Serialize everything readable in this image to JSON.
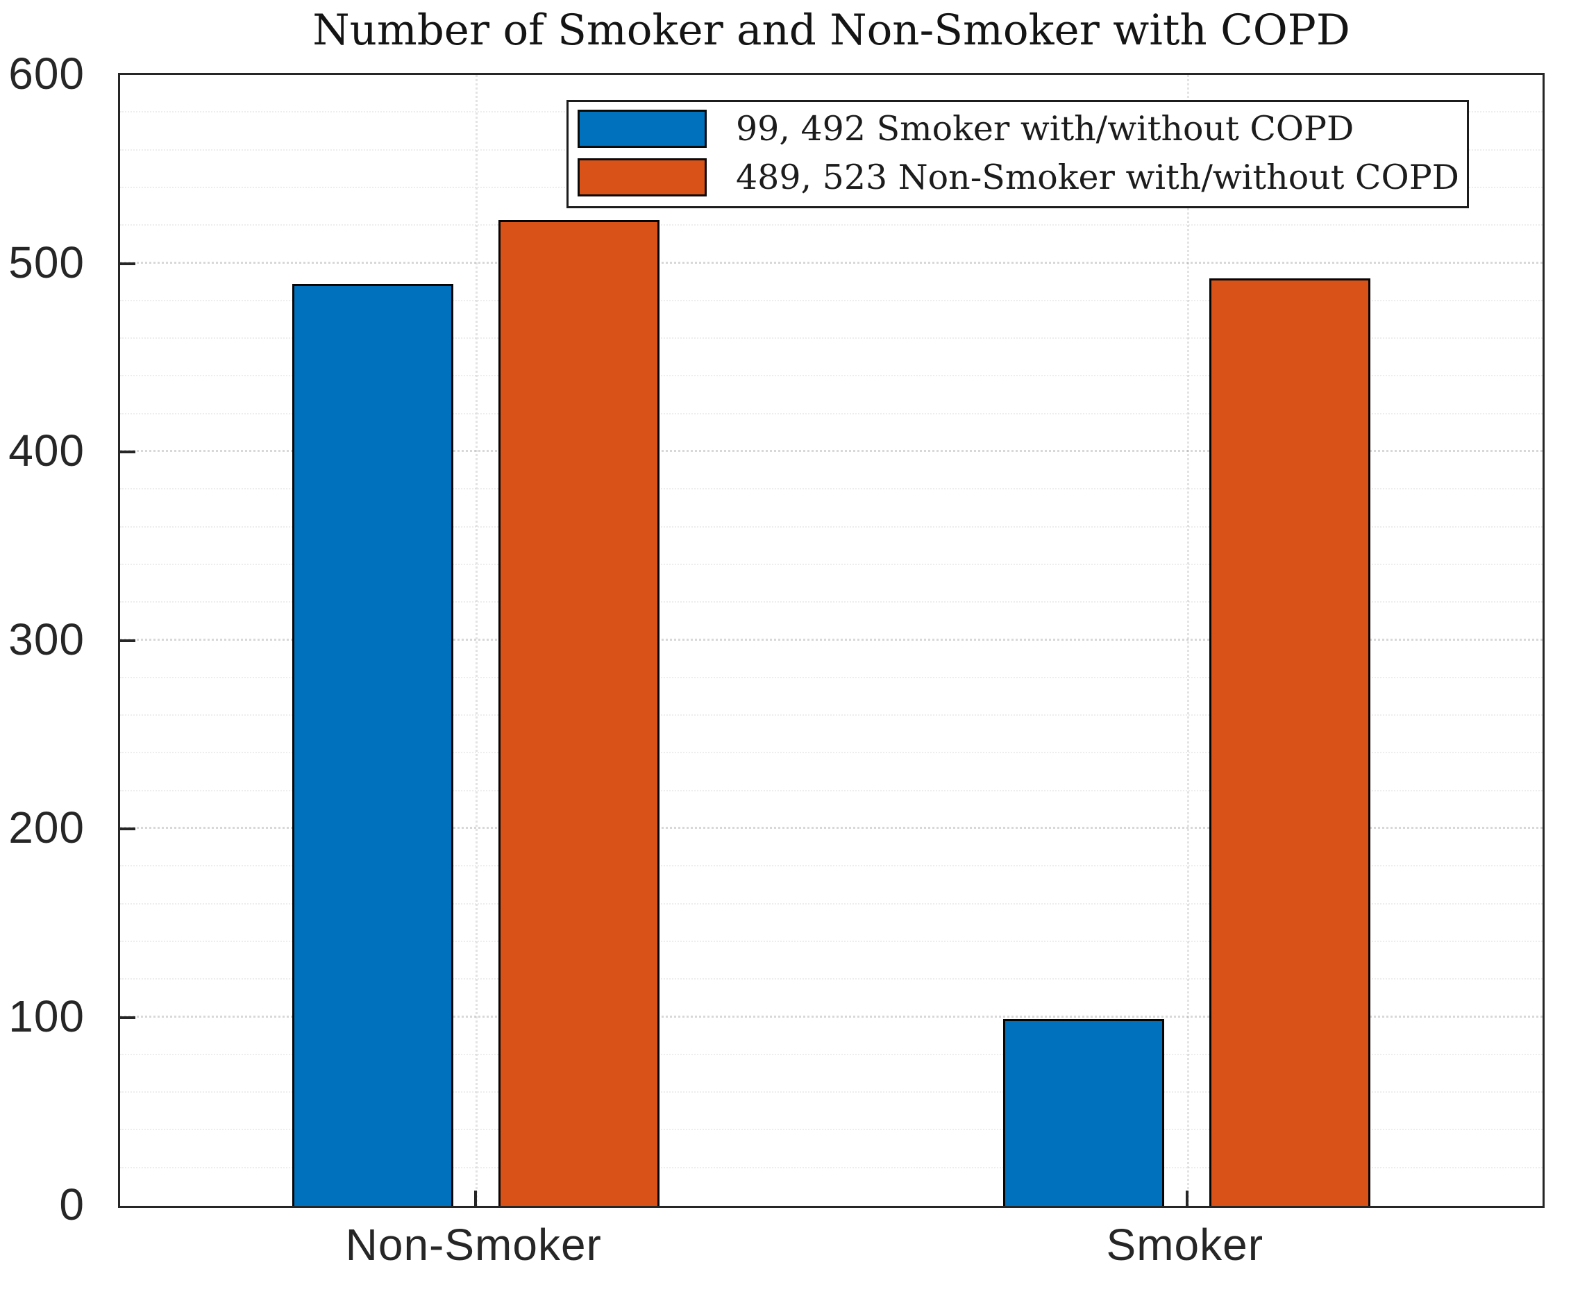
{
  "title": "Number of Smoker and Non-Smoker with COPD",
  "chart_data": {
    "type": "bar",
    "categories": [
      "Non-Smoker",
      "Smoker"
    ],
    "series": [
      {
        "name": "99, 492 Smoker with/without COPD",
        "color": "#0072BD",
        "values": [
          489,
          99
        ]
      },
      {
        "name": "489, 523 Non-Smoker with/without COPD",
        "color": "#D95319",
        "values": [
          523,
          492
        ]
      }
    ],
    "title": "Number of Smoker and Non-Smoker with COPD",
    "xlabel": "",
    "ylabel": "",
    "ylim": [
      0,
      600
    ],
    "yticks": [
      0,
      100,
      200,
      300,
      400,
      500,
      600
    ],
    "grid": "on",
    "minor_grid": "on",
    "legend_position": "north",
    "bar_edge_color": "#050505",
    "axis_color": "#262626"
  }
}
